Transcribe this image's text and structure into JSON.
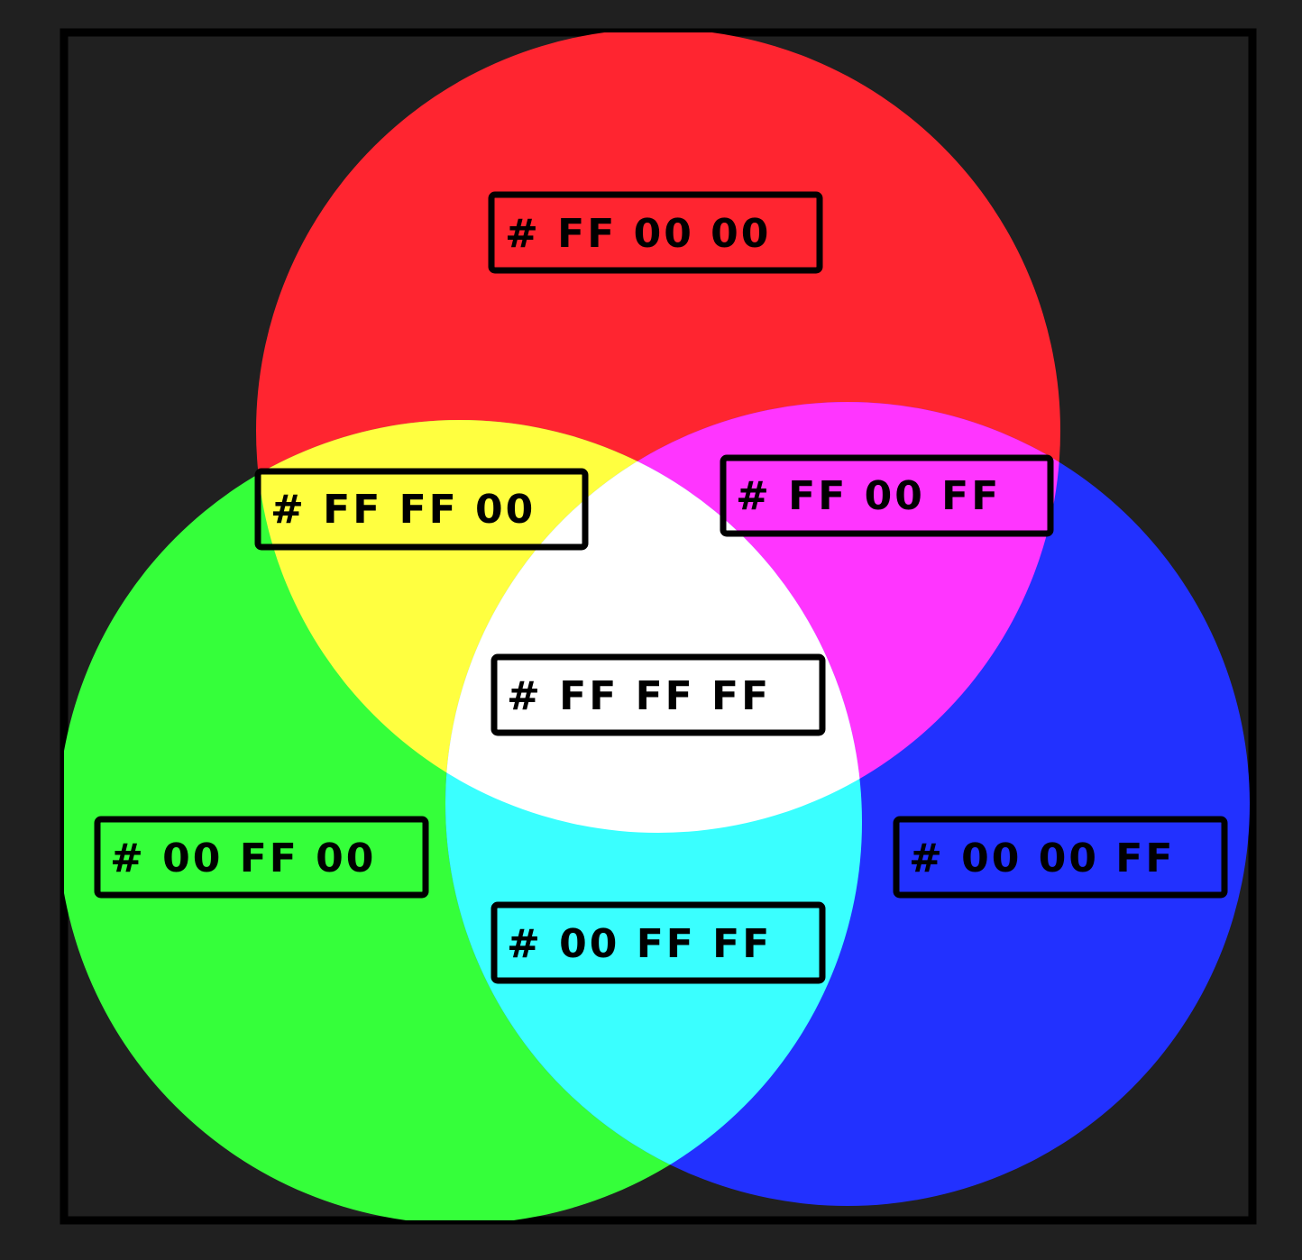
{
  "diagram": {
    "type": "rgb-additive-venn",
    "background_color": "#202020",
    "frame_color": "#000000",
    "circles": [
      {
        "name": "red",
        "color": "#FF2530",
        "label": "# FF 00 00"
      },
      {
        "name": "green",
        "color": "#35FF3A",
        "label": "# 00 FF 00"
      },
      {
        "name": "blue",
        "color": "#2231FF",
        "label": "# 00 00 FF"
      }
    ],
    "overlaps": [
      {
        "name": "red-green",
        "color": "#FFFF40",
        "label": "# FF FF 00"
      },
      {
        "name": "red-blue",
        "color": "#FF35FF",
        "label": "# FF 00 FF"
      },
      {
        "name": "green-blue",
        "color": "#3AFFFF",
        "label": "# 00 FF FF"
      },
      {
        "name": "red-green-blue",
        "color": "#FFFFFF",
        "label": "# FF FF FF"
      }
    ]
  }
}
